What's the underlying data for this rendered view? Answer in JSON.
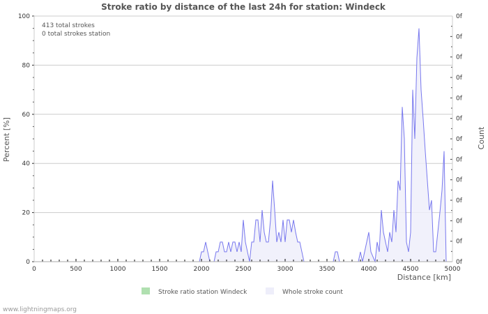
{
  "chart_data": {
    "type": "area",
    "title": "Stroke ratio by distance of the last 24h for station: Windeck",
    "xlabel": "Distance   [km]",
    "ylabel": "Percent   [%]",
    "y2label": "Count",
    "xlim": [
      0,
      5000
    ],
    "ylim": [
      0,
      100
    ],
    "xticks": [
      "0",
      "500",
      "1000",
      "1500",
      "2000",
      "2500",
      "3000",
      "3500",
      "4000",
      "4500",
      "5000"
    ],
    "yticks": [
      "0",
      "20",
      "40",
      "60",
      "80",
      "100"
    ],
    "y2ticks": [
      "0f",
      "0f",
      "0f",
      "0f",
      "0f",
      "0f",
      "0f",
      "0f",
      "0f",
      "0f",
      "0f",
      "0f",
      "0f"
    ],
    "annotations": [
      "413 total strokes",
      "0 total strokes station"
    ],
    "legend": [
      {
        "label": "Stroke ratio station Windeck",
        "color": "#b0e0b0"
      },
      {
        "label": "Whole stroke count",
        "color": "#eeeefa"
      }
    ],
    "legend_position": "bottom",
    "series": [
      {
        "name": "Whole stroke count",
        "color": "#7777ee",
        "x": [
          1975,
          2000,
          2025,
          2050,
          2075,
          2100,
          2125,
          2150,
          2175,
          2200,
          2225,
          2250,
          2275,
          2300,
          2325,
          2350,
          2375,
          2400,
          2425,
          2450,
          2475,
          2500,
          2525,
          2550,
          2575,
          2600,
          2625,
          2650,
          2675,
          2700,
          2725,
          2750,
          2775,
          2800,
          2825,
          2850,
          2875,
          2900,
          2925,
          2950,
          2975,
          3000,
          3025,
          3050,
          3075,
          3100,
          3125,
          3150,
          3175,
          3200,
          3225,
          3250,
          3575,
          3600,
          3625,
          3650,
          3875,
          3900,
          3925,
          3975,
          4000,
          4025,
          4075,
          4100,
          4125,
          4150,
          4175,
          4200,
          4225,
          4250,
          4275,
          4300,
          4325,
          4350,
          4375,
          4400,
          4425,
          4450,
          4475,
          4500,
          4525,
          4550,
          4575,
          4600,
          4625,
          4650,
          4675,
          4700,
          4725,
          4750,
          4775,
          4800,
          4825,
          4850,
          4875,
          4900,
          4925,
          4950,
          4975,
          5000
        ],
        "y": [
          0,
          4,
          4,
          8,
          4,
          0,
          0,
          0,
          4,
          4,
          8,
          8,
          4,
          4,
          8,
          4,
          8,
          8,
          4,
          8,
          4,
          17,
          8,
          4,
          0,
          8,
          8,
          17,
          17,
          8,
          21,
          12,
          8,
          8,
          17,
          33,
          21,
          8,
          12,
          8,
          17,
          8,
          17,
          17,
          12,
          17,
          12,
          8,
          8,
          4,
          0,
          0,
          0,
          4,
          4,
          0,
          0,
          4,
          0,
          8,
          12,
          4,
          0,
          8,
          4,
          21,
          12,
          8,
          4,
          12,
          8,
          21,
          12,
          33,
          29,
          63,
          50,
          8,
          4,
          12,
          70,
          50,
          83,
          95,
          70,
          58,
          45,
          33,
          21,
          25,
          4,
          4,
          12,
          20,
          29,
          45,
          0,
          0,
          0,
          0
        ]
      }
    ]
  }
}
